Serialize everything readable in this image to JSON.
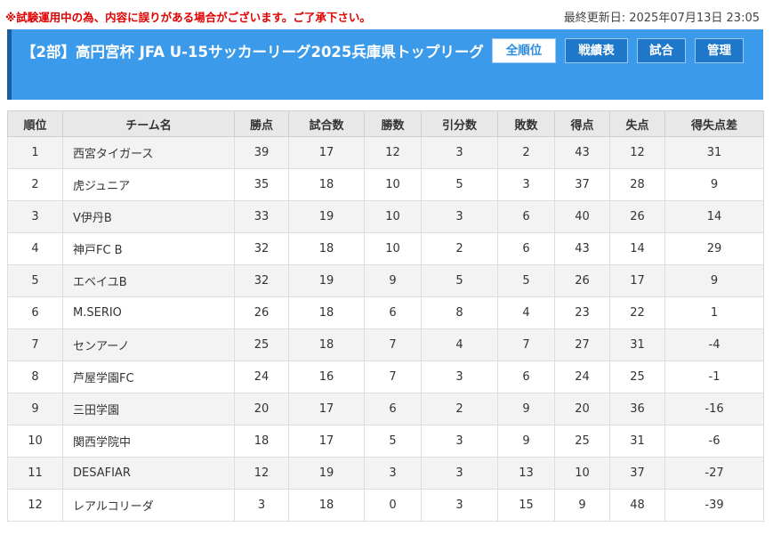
{
  "notice": "※試験運用中の為、内容に誤りがある場合がございます。ご了承下さい。",
  "last_updated": "最終更新日: 2025年07月13日 23:05",
  "header": {
    "title": "【2部】高円宮杯 JFA U-15サッカーリーグ2025兵庫県トップリーグ",
    "buttons": [
      "全順位",
      "戦績表",
      "試合",
      "管理"
    ],
    "active_button": "全順位"
  },
  "table": {
    "headers": [
      "順位",
      "チーム名",
      "勝点",
      "試合数",
      "勝数",
      "引分数",
      "敗数",
      "得点",
      "失点",
      "得失点差"
    ],
    "rows": [
      [
        "1",
        "西宮タイガース",
        "39",
        "17",
        "12",
        "3",
        "2",
        "43",
        "12",
        "31"
      ],
      [
        "2",
        "虎ジュニア",
        "35",
        "18",
        "10",
        "5",
        "3",
        "37",
        "28",
        "9"
      ],
      [
        "3",
        "V伊丹B",
        "33",
        "19",
        "10",
        "3",
        "6",
        "40",
        "26",
        "14"
      ],
      [
        "4",
        "神戸FC B",
        "32",
        "18",
        "10",
        "2",
        "6",
        "43",
        "14",
        "29"
      ],
      [
        "5",
        "エベイユB",
        "32",
        "19",
        "9",
        "5",
        "5",
        "26",
        "17",
        "9"
      ],
      [
        "6",
        "M.SERIO",
        "26",
        "18",
        "6",
        "8",
        "4",
        "23",
        "22",
        "1"
      ],
      [
        "7",
        "センアーノ",
        "25",
        "18",
        "7",
        "4",
        "7",
        "27",
        "31",
        "-4"
      ],
      [
        "8",
        "芦屋学園FC",
        "24",
        "16",
        "7",
        "3",
        "6",
        "24",
        "25",
        "-1"
      ],
      [
        "9",
        "三田学園",
        "20",
        "17",
        "6",
        "2",
        "9",
        "20",
        "36",
        "-16"
      ],
      [
        "10",
        "関西学院中",
        "18",
        "17",
        "5",
        "3",
        "9",
        "25",
        "31",
        "-6"
      ],
      [
        "11",
        "DESAFIAR",
        "12",
        "19",
        "3",
        "3",
        "13",
        "10",
        "37",
        "-27"
      ],
      [
        "12",
        "レアルコリーダ",
        "3",
        "18",
        "0",
        "3",
        "15",
        "9",
        "48",
        "-39"
      ]
    ]
  },
  "colors": {
    "header_bg": "#3b9bea",
    "header_accent": "#1d5f9d",
    "button_active_bg": "#ffffff",
    "button_inactive_bg": "#1e77c9",
    "notice_text": "#e00000"
  }
}
